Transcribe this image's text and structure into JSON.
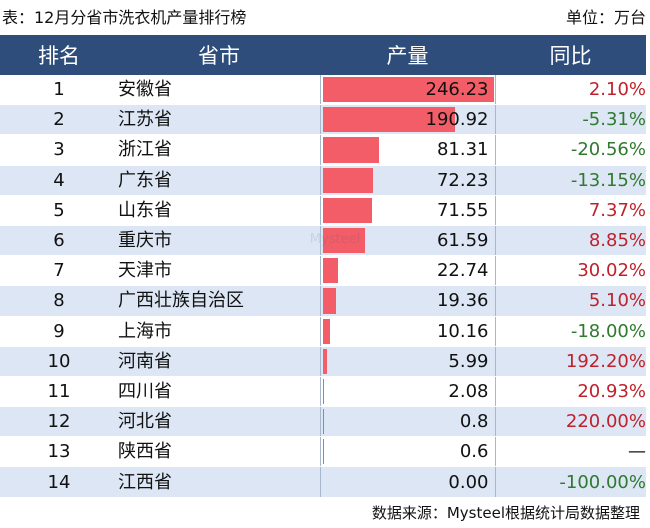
{
  "header": {
    "title": "表：12月分省市洗衣机产量排行榜",
    "unit": "单位：万台"
  },
  "table": {
    "columns": [
      "排名",
      "省市",
      "产量",
      "同比"
    ]
  },
  "chart_data": {
    "type": "table",
    "title": "表：12月分省市洗衣机产量排行榜",
    "unit": "单位：万台",
    "columns": [
      "排名",
      "省市",
      "产量",
      "同比"
    ],
    "rows": [
      {
        "rank": "1",
        "province": "安徽省",
        "output": 246.23,
        "output_text": "246.23",
        "yoy": "2.10%",
        "trend": "up"
      },
      {
        "rank": "2",
        "province": "江苏省",
        "output": 190.92,
        "output_text": "190.92",
        "yoy": "-5.31%",
        "trend": "down"
      },
      {
        "rank": "3",
        "province": "浙江省",
        "output": 81.31,
        "output_text": "81.31",
        "yoy": "-20.56%",
        "trend": "down"
      },
      {
        "rank": "4",
        "province": "广东省",
        "output": 72.23,
        "output_text": "72.23",
        "yoy": "-13.15%",
        "trend": "down"
      },
      {
        "rank": "5",
        "province": "山东省",
        "output": 71.55,
        "output_text": "71.55",
        "yoy": "7.37%",
        "trend": "up"
      },
      {
        "rank": "6",
        "province": "重庆市",
        "output": 61.59,
        "output_text": "61.59",
        "yoy": "8.85%",
        "trend": "up"
      },
      {
        "rank": "7",
        "province": "天津市",
        "output": 22.74,
        "output_text": "22.74",
        "yoy": "30.02%",
        "trend": "up"
      },
      {
        "rank": "8",
        "province": "广西壮族自治区",
        "output": 19.36,
        "output_text": "19.36",
        "yoy": "5.10%",
        "trend": "up"
      },
      {
        "rank": "9",
        "province": "上海市",
        "output": 10.16,
        "output_text": "10.16",
        "yoy": "-18.00%",
        "trend": "down"
      },
      {
        "rank": "10",
        "province": "河南省",
        "output": 5.99,
        "output_text": "5.99",
        "yoy": "192.20%",
        "trend": "up"
      },
      {
        "rank": "11",
        "province": "四川省",
        "output": 2.08,
        "output_text": "2.08",
        "yoy": "20.93%",
        "trend": "up"
      },
      {
        "rank": "12",
        "province": "河北省",
        "output": 0.8,
        "output_text": "0.8",
        "yoy": "220.00%",
        "trend": "up"
      },
      {
        "rank": "13",
        "province": "陕西省",
        "output": 0.6,
        "output_text": "0.6",
        "yoy": "—",
        "trend": "none"
      },
      {
        "rank": "14",
        "province": "江西省",
        "output": 0.0,
        "output_text": "0.00",
        "yoy": "-100.00%",
        "trend": "down"
      }
    ],
    "bar_color": "#f25d67",
    "header_color": "#2e4d7b",
    "stripe_color": "#dce6f4",
    "up_color": "#c0212b",
    "down_color": "#2f7a2f"
  },
  "footer": {
    "source": "数据来源：Mysteel根据统计局数据整理"
  },
  "watermark": {
    "text": "Mysteel"
  }
}
